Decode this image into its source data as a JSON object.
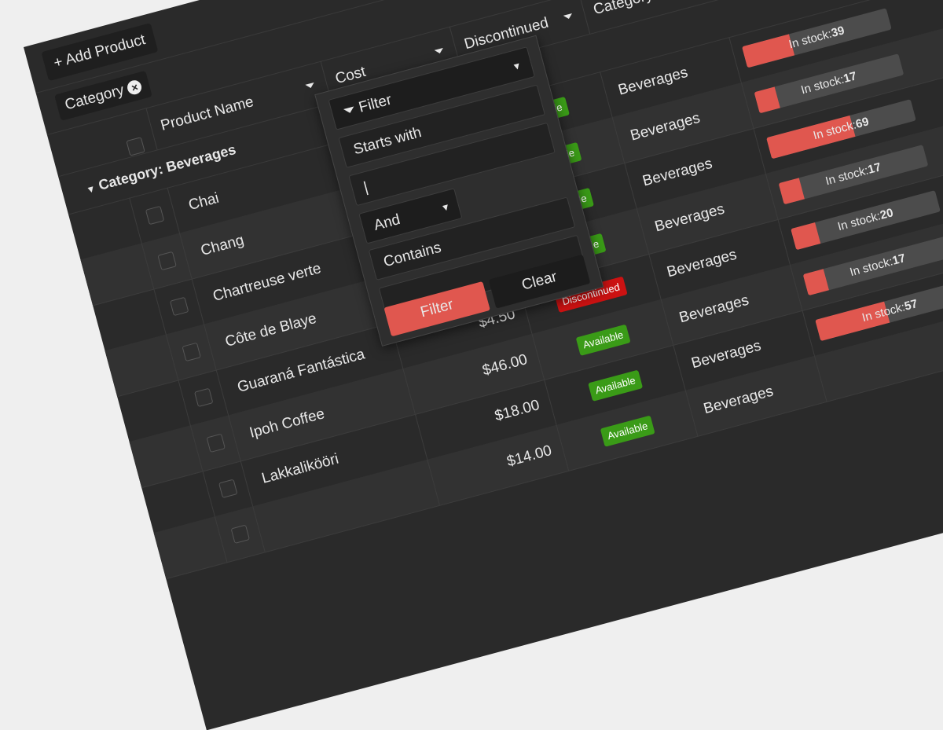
{
  "toolbar": {
    "add_button": "Add Product"
  },
  "group_panel": {
    "chip": "Category"
  },
  "columns": [
    "Product Name",
    "Cost",
    "Discontinued",
    "Category"
  ],
  "group_row": "Category: Beverages",
  "stock_label": "In stock:",
  "rows": [
    {
      "name": "Chai",
      "status": "Available",
      "category": "Beverages",
      "stock": 39
    },
    {
      "name": "Chang",
      "status": "Available",
      "category": "Beverages",
      "stock": 17
    },
    {
      "name": "Chartreuse verte",
      "status": "Available",
      "category": "Beverages",
      "stock": 69
    },
    {
      "name": "Côte de Blaye",
      "status": "Available",
      "category": "Beverages",
      "stock": 17
    },
    {
      "name": "Guaraná Fantástica",
      "cost": "$4.50",
      "status": "Discontinued",
      "category": "Beverages",
      "stock": 20
    },
    {
      "name": "Ipoh Coffee",
      "cost": "$46.00",
      "status": "Available",
      "category": "Beverages",
      "stock": 17
    },
    {
      "name": "Lakkalikööri",
      "cost": "$18.00",
      "status": "Available",
      "category": "Beverages",
      "stock": 57
    },
    {
      "cost": "$14.00",
      "status": "Available",
      "category": "Beverages"
    }
  ],
  "filter_menu": {
    "title": "Filter",
    "operator1": "Starts with",
    "logic": "And",
    "operator2": "Contains",
    "filter_button": "Filter",
    "clear_button": "Clear"
  }
}
